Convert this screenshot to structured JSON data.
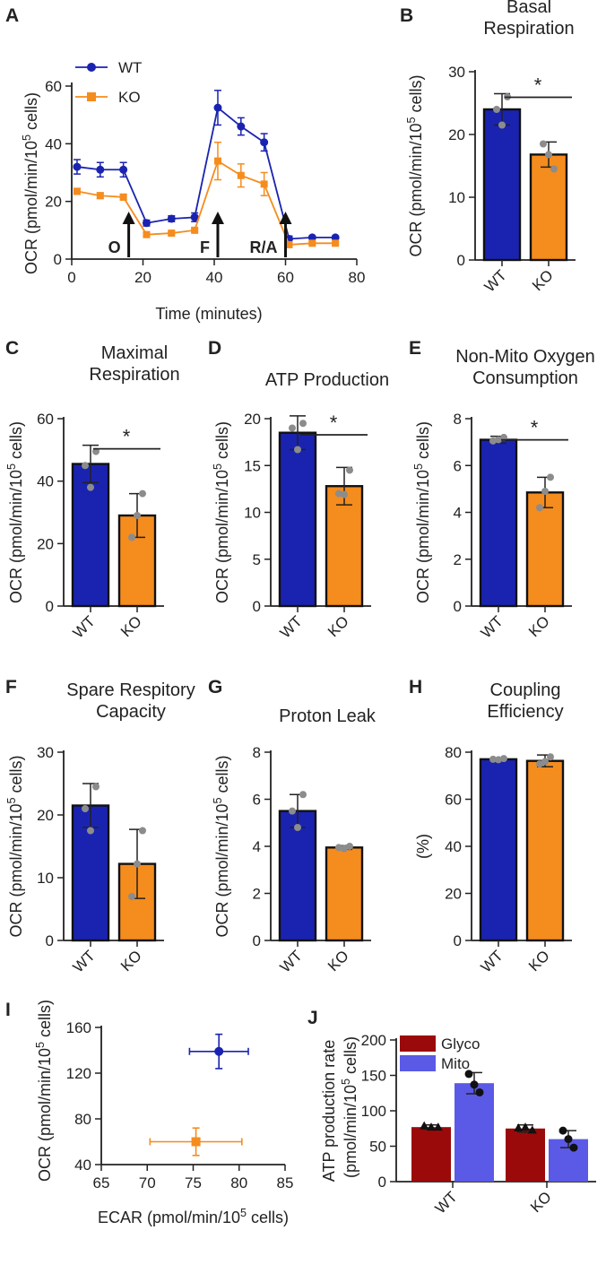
{
  "chart_data": [
    {
      "id": "A",
      "type": "line",
      "panel_label": "A",
      "title": "",
      "xlabel": "Time (minutes)",
      "ylabel": "OCR (pmol/min/10^5 cells)",
      "xlim": [
        0,
        80
      ],
      "ylim": [
        0,
        60
      ],
      "xticks": [
        0,
        20,
        40,
        60,
        80
      ],
      "yticks": [
        0,
        20,
        40,
        60
      ],
      "legend": "top-left",
      "x": [
        1.5,
        8,
        14.5,
        21,
        28,
        34.5,
        41,
        47.5,
        54,
        61,
        67.5,
        74
      ],
      "series": [
        {
          "name": "WT",
          "color": "#1a23b0",
          "marker": "circle",
          "values": [
            32,
            31,
            31,
            12.5,
            14,
            14.5,
            52.5,
            46,
            40.5,
            7,
            7.5,
            7.5
          ],
          "errors": [
            2.5,
            2.5,
            2.5,
            1,
            1,
            1.5,
            6,
            3,
            3,
            1,
            0.5,
            0.5
          ]
        },
        {
          "name": "KO",
          "color": "#f58c1e",
          "marker": "square",
          "values": [
            23.5,
            22,
            21.5,
            8.5,
            9,
            10,
            34,
            29,
            26,
            5,
            5.5,
            5.5
          ],
          "errors": [
            1,
            1,
            1,
            0.5,
            0.5,
            0.5,
            6.5,
            4,
            4,
            0.5,
            0.5,
            0.5
          ]
        }
      ],
      "annotations": [
        {
          "text": "O",
          "x": 16
        },
        {
          "text": "F",
          "x": 41
        },
        {
          "text": "R/A",
          "x": 60
        }
      ]
    },
    {
      "id": "B",
      "type": "bar",
      "panel_label": "B",
      "title": "Basal Respiration",
      "ylabel": "OCR (pmol/min/10^5 cells)",
      "ylim": [
        0,
        30
      ],
      "yticks": [
        0,
        10,
        20,
        30
      ],
      "categories": [
        "WT",
        "KO"
      ],
      "values": [
        24,
        16.8
      ],
      "errors": [
        2.5,
        2
      ],
      "points": [
        [
          24,
          26,
          21.5
        ],
        [
          18.5,
          14.5,
          16.8
        ]
      ],
      "significance": "*"
    },
    {
      "id": "C",
      "type": "bar",
      "panel_label": "C",
      "title": "Maximal Respiration",
      "ylabel": "OCR (pmol/min/10^5 cells)",
      "ylim": [
        0,
        60
      ],
      "yticks": [
        0,
        20,
        40,
        60
      ],
      "categories": [
        "WT",
        "KO"
      ],
      "values": [
        45.5,
        29
      ],
      "errors": [
        6,
        7
      ],
      "points": [
        [
          45,
          49.5,
          38
        ],
        [
          22,
          36,
          29
        ]
      ],
      "significance": "*"
    },
    {
      "id": "D",
      "type": "bar",
      "panel_label": "D",
      "title": "ATP Production",
      "ylabel": "OCR (pmol/min/10^5 cells)",
      "ylim": [
        0,
        20
      ],
      "yticks": [
        0,
        5,
        10,
        15,
        20
      ],
      "categories": [
        "WT",
        "KO"
      ],
      "values": [
        18.5,
        12.8
      ],
      "errors": [
        1.8,
        2
      ],
      "points": [
        [
          19,
          19.5,
          16.7
        ],
        [
          12,
          14.5,
          11.9
        ]
      ],
      "significance": "*"
    },
    {
      "id": "E",
      "type": "bar",
      "panel_label": "E",
      "title": "Non-Mito Oxygen Consumption",
      "ylabel": "OCR (pmol/min/10^5 cells)",
      "ylim": [
        0,
        8
      ],
      "yticks": [
        0,
        2,
        4,
        6,
        8
      ],
      "categories": [
        "WT",
        "KO"
      ],
      "values": [
        7.1,
        4.85
      ],
      "errors": [
        0.15,
        0.65
      ],
      "points": [
        [
          7.05,
          7.2,
          7.1
        ],
        [
          4.2,
          5.5,
          4.9
        ]
      ],
      "significance": "*"
    },
    {
      "id": "F",
      "type": "bar",
      "panel_label": "F",
      "title": "Spare Respitory Capacity",
      "ylabel": "OCR (pmol/min/10^5 cells)",
      "ylim": [
        0,
        30
      ],
      "yticks": [
        0,
        10,
        20,
        30
      ],
      "categories": [
        "WT",
        "KO"
      ],
      "values": [
        21.5,
        12.2
      ],
      "errors": [
        3.5,
        5.5
      ],
      "points": [
        [
          21,
          24.5,
          17.5
        ],
        [
          7,
          17.5,
          12.2
        ]
      ],
      "significance": ""
    },
    {
      "id": "G",
      "type": "bar",
      "panel_label": "G",
      "title": "Proton Leak",
      "ylabel": "OCR (pmol/min/10^5 cells)",
      "ylim": [
        0,
        8
      ],
      "yticks": [
        0,
        2,
        4,
        6,
        8
      ],
      "categories": [
        "WT",
        "KO"
      ],
      "values": [
        5.5,
        3.95
      ],
      "errors": [
        0.7,
        0.08
      ],
      "points": [
        [
          5.5,
          6.2,
          4.8
        ],
        [
          3.95,
          4.0,
          3.9
        ]
      ],
      "significance": ""
    },
    {
      "id": "H",
      "type": "bar",
      "panel_label": "H",
      "title": "Coupling Efficiency",
      "ylabel": "(%)",
      "ylim": [
        0,
        80
      ],
      "yticks": [
        0,
        20,
        40,
        60,
        80
      ],
      "categories": [
        "WT",
        "KO"
      ],
      "values": [
        77,
        76.3
      ],
      "errors": [
        0.5,
        2.5
      ],
      "points": [
        [
          77,
          77.3,
          76.8
        ],
        [
          75,
          78,
          76
        ]
      ],
      "significance": ""
    },
    {
      "id": "I",
      "type": "scatter",
      "panel_label": "I",
      "xlabel": "ECAR (pmol/min/10^5 cells)",
      "ylabel": "OCR (pmol/min/10^5 cells)",
      "xlim": [
        65,
        85
      ],
      "ylim": [
        40,
        160
      ],
      "xticks": [
        65,
        70,
        75,
        80,
        85
      ],
      "yticks": [
        40,
        80,
        120,
        160
      ],
      "series": [
        {
          "name": "WT",
          "color": "#1a23b0",
          "marker": "circle",
          "x": 77.8,
          "y": 139,
          "xerr": 3.2,
          "yerr": 15
        },
        {
          "name": "KO",
          "color": "#f58c1e",
          "marker": "square",
          "x": 75.3,
          "y": 60,
          "xerr": 5,
          "yerr": 12
        }
      ]
    },
    {
      "id": "J",
      "type": "bar",
      "panel_label": "J",
      "ylabel": "ATP production rate",
      "ylabel2": "(pmol/min/10^5 cells)",
      "ylim": [
        0,
        200
      ],
      "yticks": [
        0,
        50,
        100,
        150,
        200
      ],
      "categories": [
        "WT",
        "KO"
      ],
      "legend": "top-left",
      "series": [
        {
          "name": "Glyco",
          "color": "#9b0a0a",
          "values": [
            77,
            75
          ],
          "errors": [
            3,
            5
          ],
          "points": [
            [
              79,
              77,
              77
            ],
            [
              76,
              73,
              77
            ]
          ]
        },
        {
          "name": "Mito",
          "color": "#5a5ae6",
          "values": [
            139,
            60
          ],
          "errors": [
            15,
            12
          ],
          "points": [
            [
              152,
              126,
              137
            ],
            [
              72,
              48,
              60
            ]
          ]
        }
      ]
    }
  ]
}
